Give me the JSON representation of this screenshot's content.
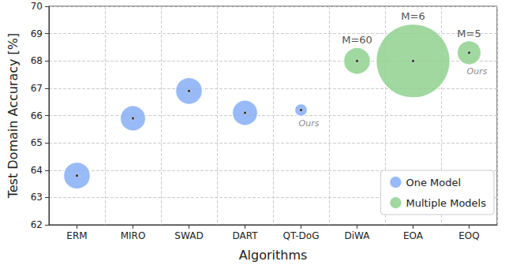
{
  "chart_data": {
    "type": "scatter",
    "x_label": "Algorithms",
    "y_label": "Test Domain Accuracy [%]",
    "categories": [
      "ERM",
      "MIRO",
      "SWAD",
      "DART",
      "QT-DoG",
      "DiWA",
      "EOA",
      "EOQ"
    ],
    "series": [
      {
        "name": "One Model",
        "color": "#86aef5",
        "values": [
          63.8,
          65.9,
          66.9,
          66.1,
          66.2,
          null,
          null,
          null
        ],
        "sizes": [
          1,
          0.9,
          1,
          0.9,
          0.22,
          null,
          null,
          null
        ]
      },
      {
        "name": "Multiple Models",
        "color": "#8fd18f",
        "values": [
          null,
          null,
          null,
          null,
          null,
          68.0,
          68.0,
          68.3
        ],
        "sizes": [
          null,
          null,
          null,
          null,
          null,
          1,
          7.6,
          0.8
        ]
      }
    ],
    "annotations": [
      {
        "category": "QT-DoG",
        "text": "Ours",
        "position": "bottom"
      },
      {
        "category": "DiWA",
        "text": "M=60",
        "position": "top"
      },
      {
        "category": "EOA",
        "text": "M=6",
        "position": "top"
      },
      {
        "category": "EOQ",
        "text": "M=5",
        "position": "top"
      },
      {
        "category": "EOQ",
        "text": "Ours",
        "position": "bottom"
      }
    ],
    "ylim": [
      62,
      70
    ],
    "yticks": [
      62,
      63,
      64,
      65,
      66,
      67,
      68,
      69,
      70
    ],
    "grid": true,
    "legend": "lower right",
    "marker": "circle"
  }
}
